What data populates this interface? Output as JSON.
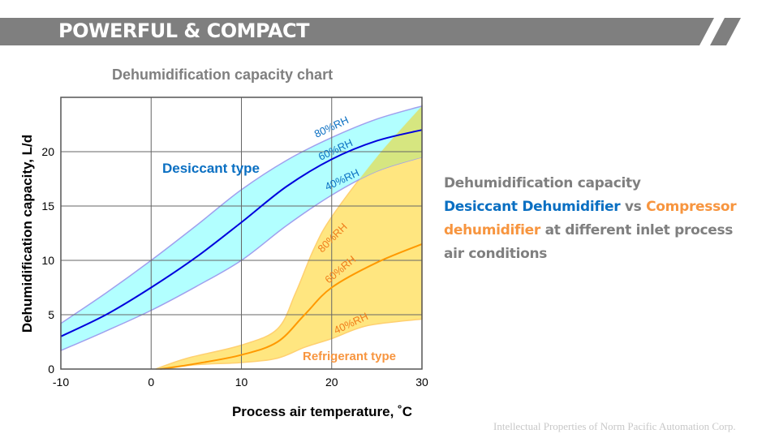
{
  "header": {
    "title": "POWERFUL & COMPACT"
  },
  "description": {
    "line1": "Dehumidification capacity",
    "desiccant": "Desiccant Dehumidifier",
    "vs": " vs ",
    "compressor": "Compressor dehumidifier",
    "rest": " at different inlet process air conditions"
  },
  "footer": "Intellectual Properties of Norm Pacific Automation Corp.",
  "colors": {
    "banner": "#7f7f7f",
    "desiccant_fill": "#aaffff",
    "desiccant_line": "#0000dd",
    "desiccant_edge": "#a0a0ee",
    "refrigerant_fill": "#ffe680",
    "refrigerant_line": "#ff9900",
    "overlap": "#d6e680"
  },
  "chart_data": {
    "type": "area",
    "title": "Dehumidification  capacity chart",
    "xlabel": "Process air temperature, ˚C",
    "ylabel": "Dehumidification capacity, L/d",
    "xlim": [
      -10,
      30
    ],
    "ylim": [
      0,
      25
    ],
    "xticks": [
      -10,
      0,
      10,
      20,
      30
    ],
    "yticks": [
      0,
      5,
      10,
      15,
      20
    ],
    "grid": true,
    "annotations": {
      "desiccant": "Desiccant type",
      "refrigerant": "Refrigerant type"
    },
    "series": [
      {
        "name": "Desiccant 80%RH",
        "label": "80%RH",
        "x": [
          -10,
          -5,
          0,
          5,
          10,
          15,
          20,
          25,
          30
        ],
        "y": [
          4.2,
          7,
          10,
          13.2,
          16.5,
          19.2,
          21.3,
          23,
          24.2
        ]
      },
      {
        "name": "Desiccant 60%RH",
        "label": "60%RH",
        "x": [
          -10,
          -5,
          0,
          5,
          10,
          15,
          20,
          25,
          30
        ],
        "y": [
          3,
          5,
          7.5,
          10.3,
          13.5,
          16.8,
          19.3,
          21,
          22
        ]
      },
      {
        "name": "Desiccant 40%RH",
        "label": "40%RH",
        "x": [
          -10,
          -5,
          0,
          5,
          10,
          15,
          20,
          25,
          30
        ],
        "y": [
          1.7,
          3.5,
          5.4,
          7.6,
          10,
          13.2,
          16,
          18.2,
          19.5
        ]
      },
      {
        "name": "Refrigerant 80%RH",
        "label": "80%RH",
        "x": [
          0.5,
          4,
          10,
          14,
          16,
          18,
          20,
          25,
          30
        ],
        "y": [
          0,
          1,
          2.2,
          3.7,
          7,
          11,
          14,
          19.5,
          24.2
        ]
      },
      {
        "name": "Refrigerant 60%RH",
        "label": "60%RH",
        "x": [
          1,
          5,
          10,
          14,
          17,
          20,
          25,
          30
        ],
        "y": [
          0,
          0.5,
          1.3,
          2.5,
          5,
          7.5,
          9.8,
          11.5
        ]
      },
      {
        "name": "Refrigerant 40%RH",
        "label": "40%RH",
        "x": [
          1.5,
          5,
          10,
          14,
          17,
          20,
          24,
          30
        ],
        "y": [
          0,
          0.4,
          0.6,
          1,
          2,
          2.8,
          4,
          4.6
        ]
      }
    ]
  }
}
